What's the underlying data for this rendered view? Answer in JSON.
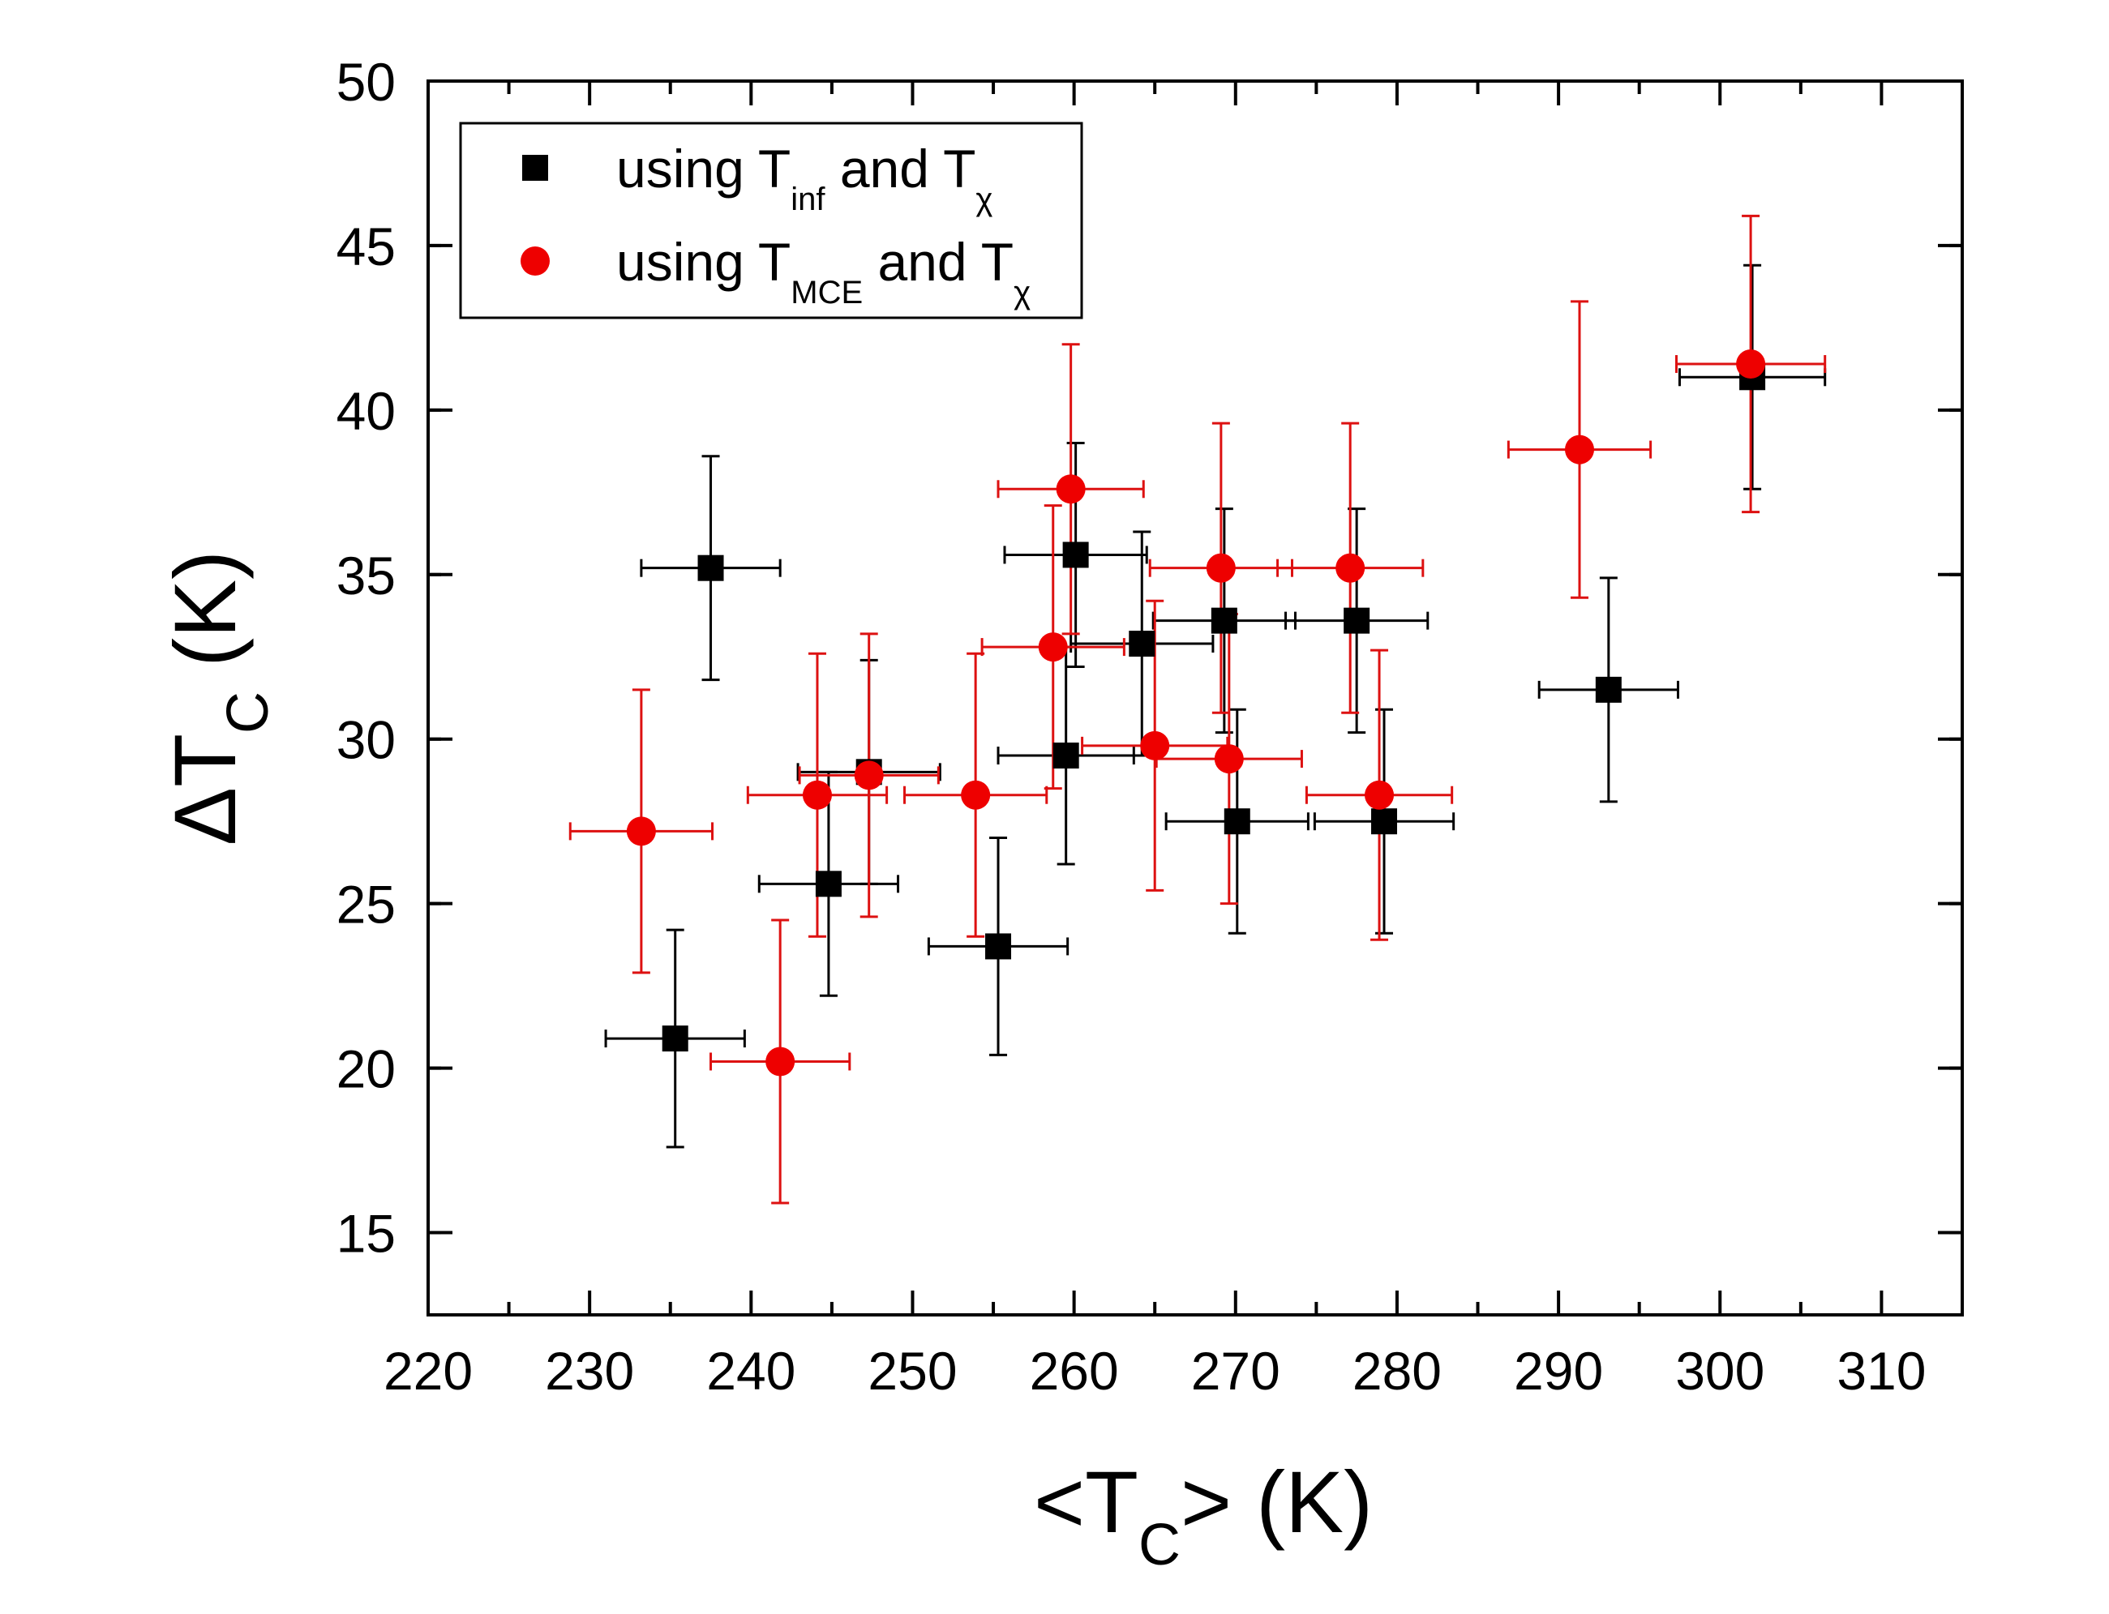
{
  "chart_data": {
    "type": "scatter",
    "title": "",
    "xlabel": {
      "prefix": "<T",
      "sub": "C",
      "suffix": "> (K)"
    },
    "ylabel": {
      "prefix": "ΔT",
      "sub": "C",
      "suffix": " (K)"
    },
    "xlim": [
      220,
      315
    ],
    "ylim": [
      12.5,
      50
    ],
    "xticks": [
      220,
      230,
      240,
      250,
      260,
      270,
      280,
      290,
      300,
      310
    ],
    "yticks": [
      15,
      20,
      25,
      30,
      35,
      40,
      45,
      50
    ],
    "x_minor_step": 5,
    "y_minor_step": 2.5,
    "grid": false,
    "legend_position": "top-left",
    "series": [
      {
        "name": "using T_inf and T_χ",
        "legend": {
          "prefix": "using T",
          "sub": "inf",
          "mid": " and T",
          "sub2": "χ"
        },
        "marker": "square",
        "color": "#000000",
        "error_color": "#000000",
        "points": [
          {
            "x": 237.5,
            "y": 35.2,
            "xerr": 4.3,
            "yerr": 3.4
          },
          {
            "x": 235.3,
            "y": 20.9,
            "xerr": 4.3,
            "yerr": 3.3
          },
          {
            "x": 244.8,
            "y": 25.6,
            "xerr": 4.3,
            "yerr": 3.4
          },
          {
            "x": 247.3,
            "y": 29.0,
            "xerr": 4.4,
            "yerr": 3.4
          },
          {
            "x": 255.3,
            "y": 23.7,
            "xerr": 4.3,
            "yerr": 3.3
          },
          {
            "x": 259.5,
            "y": 29.5,
            "xerr": 4.2,
            "yerr": 3.3
          },
          {
            "x": 260.1,
            "y": 35.6,
            "xerr": 4.4,
            "yerr": 3.4
          },
          {
            "x": 264.2,
            "y": 32.9,
            "xerr": 4.4,
            "yerr": 3.4
          },
          {
            "x": 269.3,
            "y": 33.6,
            "xerr": 4.4,
            "yerr": 3.4
          },
          {
            "x": 270.1,
            "y": 27.5,
            "xerr": 4.4,
            "yerr": 3.4
          },
          {
            "x": 277.5,
            "y": 33.6,
            "xerr": 4.4,
            "yerr": 3.4
          },
          {
            "x": 279.2,
            "y": 27.5,
            "xerr": 4.3,
            "yerr": 3.4
          },
          {
            "x": 293.1,
            "y": 31.5,
            "xerr": 4.3,
            "yerr": 3.4
          },
          {
            "x": 302.0,
            "y": 41.0,
            "xerr": 4.5,
            "yerr": 3.4
          }
        ]
      },
      {
        "name": "using T_MCE and T_χ",
        "legend": {
          "prefix": "using T",
          "sub": "MCE",
          "mid": " and T",
          "sub2": "χ"
        },
        "marker": "circle",
        "color": "#ee0000",
        "error_color": "#dd1111",
        "points": [
          {
            "x": 233.2,
            "y": 27.2,
            "xerr": 4.4,
            "yerr": 4.3
          },
          {
            "x": 241.8,
            "y": 20.2,
            "xerr": 4.3,
            "yerr": 4.3
          },
          {
            "x": 244.1,
            "y": 28.3,
            "xerr": 4.3,
            "yerr": 4.3
          },
          {
            "x": 247.3,
            "y": 28.9,
            "xerr": 4.3,
            "yerr": 4.3
          },
          {
            "x": 253.9,
            "y": 28.3,
            "xerr": 4.4,
            "yerr": 4.3
          },
          {
            "x": 258.7,
            "y": 32.8,
            "xerr": 4.4,
            "yerr": 4.3
          },
          {
            "x": 259.8,
            "y": 37.6,
            "xerr": 4.5,
            "yerr": 4.4
          },
          {
            "x": 265.0,
            "y": 29.8,
            "xerr": 4.5,
            "yerr": 4.4
          },
          {
            "x": 269.1,
            "y": 35.2,
            "xerr": 4.4,
            "yerr": 4.4
          },
          {
            "x": 269.6,
            "y": 29.4,
            "xerr": 4.5,
            "yerr": 4.4
          },
          {
            "x": 277.1,
            "y": 35.2,
            "xerr": 4.5,
            "yerr": 4.4
          },
          {
            "x": 278.9,
            "y": 28.3,
            "xerr": 4.5,
            "yerr": 4.4
          },
          {
            "x": 291.3,
            "y": 38.8,
            "xerr": 4.4,
            "yerr": 4.5
          },
          {
            "x": 301.9,
            "y": 41.4,
            "xerr": 4.6,
            "yerr": 4.5
          }
        ]
      }
    ]
  }
}
